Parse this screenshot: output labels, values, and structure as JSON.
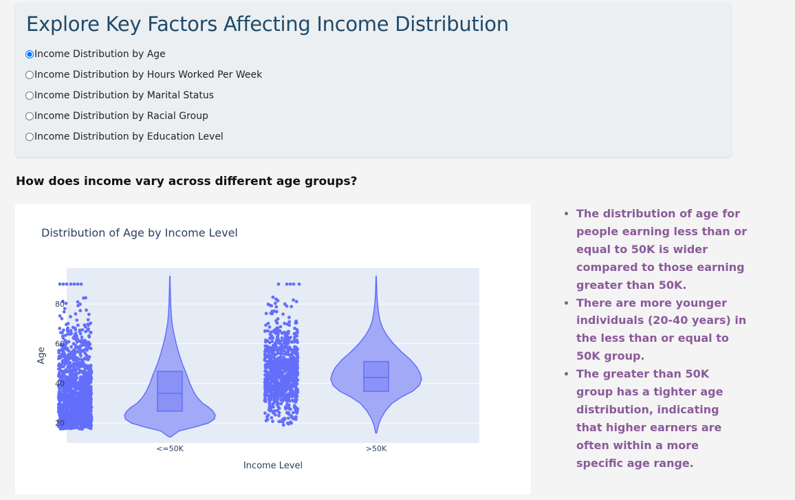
{
  "header": {
    "title": "Explore Key Factors Affecting Income Distribution",
    "options": [
      {
        "label": "Income Distribution by Age",
        "selected": true
      },
      {
        "label": "Income Distribution by Hours Worked Per Week",
        "selected": false
      },
      {
        "label": "Income Distribution by Marital Status",
        "selected": false
      },
      {
        "label": "Income Distribution by Racial Group",
        "selected": false
      },
      {
        "label": "Income Distribution by Education Level",
        "selected": false
      }
    ]
  },
  "question": "How does income vary across different age groups?",
  "notes": [
    "The distribution of age for people earning less than or equal to 50K is wider compared to those earning greater than 50K.",
    "There are more younger individuals (20-40 years) in the less than or equal to 50K group.",
    "The greater than 50K group has a tighter age distribution, indicating that higher earners are often within a more specific age range."
  ],
  "colors": {
    "title": "#1e4a6b",
    "notes": "#8a5a9a",
    "violin_fill": "#9ea6f7",
    "violin_line": "#636efa",
    "points": "#636efa",
    "plot_bg": "#e5ecf6"
  },
  "chart_data": {
    "type": "violin",
    "title": "Distribution of Age by Income Level",
    "xlabel": "Income Level",
    "ylabel": "Age",
    "categories": [
      "<=50K",
      ">50K"
    ],
    "ylim": [
      10,
      98
    ],
    "yticks": [
      20,
      40,
      60,
      80
    ],
    "grid": true,
    "points_shown": "all",
    "series": [
      {
        "category": "<=50K",
        "min": 17,
        "q1": 26,
        "median": 35,
        "q3": 46,
        "max": 90,
        "kde_range": [
          13,
          94
        ],
        "density": [
          [
            13,
            0.02
          ],
          [
            16,
            0.2
          ],
          [
            18,
            0.55
          ],
          [
            20,
            0.85
          ],
          [
            22,
            0.98
          ],
          [
            24,
            1.0
          ],
          [
            26,
            0.95
          ],
          [
            28,
            0.85
          ],
          [
            30,
            0.72
          ],
          [
            33,
            0.6
          ],
          [
            36,
            0.52
          ],
          [
            40,
            0.44
          ],
          [
            45,
            0.36
          ],
          [
            50,
            0.27
          ],
          [
            55,
            0.2
          ],
          [
            60,
            0.14
          ],
          [
            65,
            0.09
          ],
          [
            70,
            0.05
          ],
          [
            75,
            0.03
          ],
          [
            80,
            0.02
          ],
          [
            86,
            0.01
          ],
          [
            94,
            0.003
          ]
        ]
      },
      {
        "category": ">50K",
        "min": 19,
        "q1": 36,
        "median": 43,
        "q3": 51,
        "max": 90,
        "kde_range": [
          15,
          94
        ],
        "density": [
          [
            15,
            0.01
          ],
          [
            19,
            0.05
          ],
          [
            22,
            0.1
          ],
          [
            26,
            0.2
          ],
          [
            30,
            0.35
          ],
          [
            33,
            0.55
          ],
          [
            36,
            0.8
          ],
          [
            39,
            0.95
          ],
          [
            42,
            1.0
          ],
          [
            45,
            0.97
          ],
          [
            48,
            0.9
          ],
          [
            52,
            0.75
          ],
          [
            56,
            0.55
          ],
          [
            60,
            0.38
          ],
          [
            64,
            0.24
          ],
          [
            68,
            0.14
          ],
          [
            72,
            0.08
          ],
          [
            76,
            0.05
          ],
          [
            80,
            0.03
          ],
          [
            85,
            0.015
          ],
          [
            94,
            0.003
          ]
        ]
      }
    ]
  }
}
